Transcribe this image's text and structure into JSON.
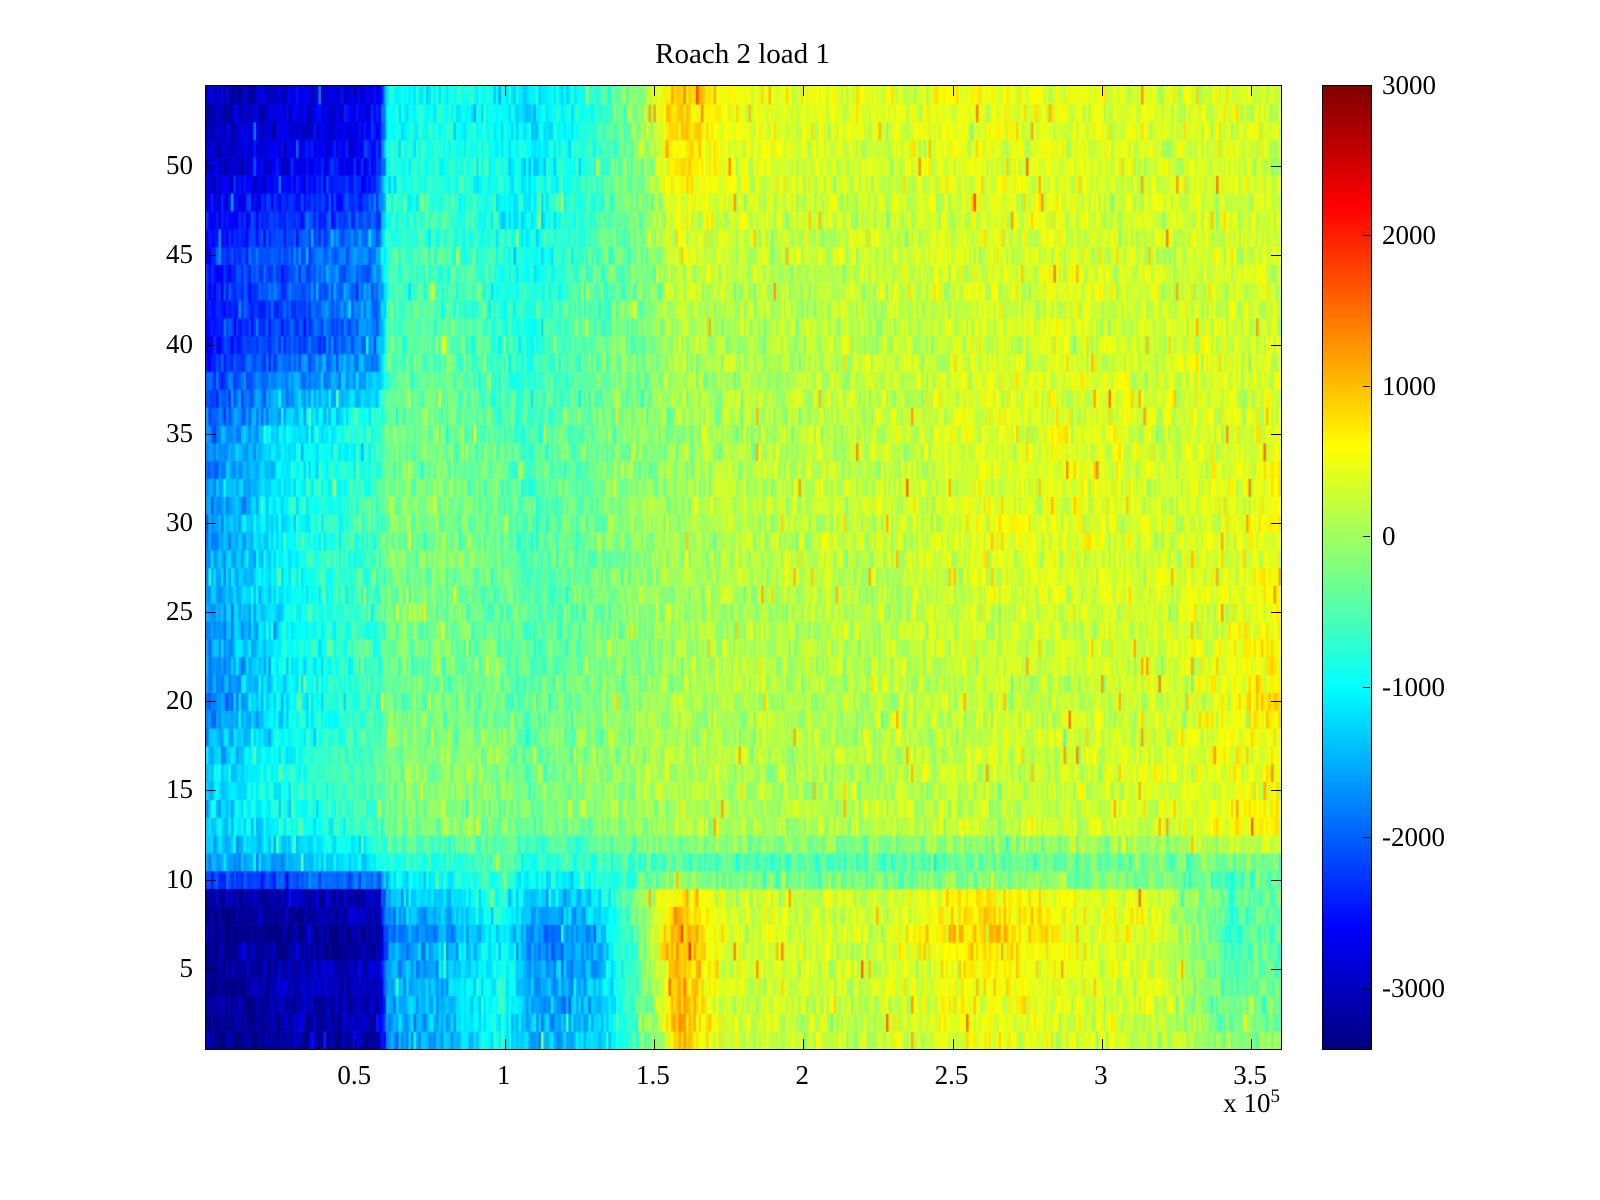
{
  "axes": {
    "x_offset_base": "x 10",
    "x_offset_exp": "5"
  },
  "chart_data": {
    "type": "heatmap",
    "title": "Roach 2 load 1",
    "xlabel": "",
    "ylabel": "",
    "xlim": [
      0,
      360000
    ],
    "ylim": [
      0.5,
      54.5
    ],
    "clim": [
      -3400,
      3000
    ],
    "colormap": "jet",
    "legend": "colorbar-right",
    "grid_lines": "off",
    "x_ticks": [
      {
        "value": 50000,
        "label": "0.5"
      },
      {
        "value": 100000,
        "label": "1"
      },
      {
        "value": 150000,
        "label": "1.5"
      },
      {
        "value": 200000,
        "label": "2"
      },
      {
        "value": 250000,
        "label": "2.5"
      },
      {
        "value": 300000,
        "label": "3"
      },
      {
        "value": 350000,
        "label": "3.5"
      }
    ],
    "y_ticks": [
      {
        "value": 5,
        "label": "5"
      },
      {
        "value": 10,
        "label": "10"
      },
      {
        "value": 15,
        "label": "15"
      },
      {
        "value": 20,
        "label": "20"
      },
      {
        "value": 25,
        "label": "25"
      },
      {
        "value": 30,
        "label": "30"
      },
      {
        "value": 35,
        "label": "35"
      },
      {
        "value": 40,
        "label": "40"
      },
      {
        "value": 45,
        "label": "45"
      },
      {
        "value": 50,
        "label": "50"
      }
    ],
    "colorbar_ticks": [
      {
        "value": 3000,
        "label": "3000"
      },
      {
        "value": 2000,
        "label": "2000"
      },
      {
        "value": 1000,
        "label": "1000"
      },
      {
        "value": 0,
        "label": "0"
      },
      {
        "value": -1000,
        "label": "-1000"
      },
      {
        "value": -2000,
        "label": "-2000"
      },
      {
        "value": -3000,
        "label": "-3000"
      }
    ],
    "grid": {
      "x": [
        0,
        30000,
        58000,
        61000,
        80000,
        100000,
        108000,
        130000,
        148000,
        158000,
        175000,
        200000,
        230000,
        260000,
        290000,
        320000,
        342000,
        360000
      ],
      "y": [
        1,
        4,
        7,
        9,
        10.5,
        13,
        16,
        20,
        25,
        30,
        35,
        40,
        45,
        50,
        54
      ],
      "values": [
        [
          -3200,
          -3200,
          -3100,
          -1600,
          -1500,
          -900,
          -1500,
          -1400,
          -300,
          1000,
          300,
          150,
          250,
          500,
          350,
          250,
          -200,
          -100
        ],
        [
          -3300,
          -3000,
          -3000,
          -1500,
          -1400,
          -800,
          -1600,
          -1500,
          -200,
          1100,
          350,
          200,
          300,
          600,
          400,
          300,
          -400,
          -300
        ],
        [
          -3300,
          -3300,
          -3200,
          -1800,
          -1600,
          -1000,
          -1800,
          -1600,
          0,
          1200,
          400,
          250,
          350,
          900,
          600,
          350,
          -600,
          -400
        ],
        [
          -3200,
          -3100,
          -3000,
          -1400,
          -1300,
          -700,
          -1400,
          -1200,
          100,
          900,
          350,
          250,
          300,
          700,
          450,
          300,
          -500,
          -300
        ],
        [
          -1800,
          -1500,
          -1300,
          -1000,
          -900,
          -700,
          -900,
          -800,
          -600,
          -500,
          -600,
          -650,
          -600,
          -550,
          -500,
          -450,
          -500,
          -400
        ],
        [
          -1300,
          -900,
          -600,
          -250,
          -150,
          -100,
          -350,
          -150,
          0,
          100,
          100,
          100,
          150,
          200,
          250,
          300,
          500,
          600
        ],
        [
          -1400,
          -800,
          -500,
          -200,
          -100,
          -150,
          -300,
          -100,
          50,
          100,
          150,
          100,
          150,
          250,
          300,
          300,
          450,
          550
        ],
        [
          -1800,
          -1000,
          -600,
          -350,
          -250,
          -300,
          -450,
          -200,
          -50,
          50,
          100,
          100,
          150,
          200,
          250,
          300,
          500,
          800
        ],
        [
          -1700,
          -950,
          -550,
          -300,
          -200,
          -350,
          -500,
          -250,
          -100,
          0,
          100,
          150,
          150,
          250,
          300,
          300,
          400,
          500
        ],
        [
          -1700,
          -900,
          -500,
          -250,
          -200,
          -400,
          -550,
          -250,
          -100,
          50,
          150,
          200,
          250,
          450,
          400,
          350,
          400,
          600
        ],
        [
          -1900,
          -1100,
          -700,
          -300,
          -250,
          -450,
          -600,
          -300,
          -150,
          0,
          100,
          150,
          200,
          400,
          450,
          300,
          350,
          400
        ],
        [
          -2500,
          -2100,
          -1800,
          -500,
          -400,
          -700,
          -800,
          -400,
          -200,
          100,
          100,
          150,
          200,
          300,
          350,
          300,
          350,
          300
        ],
        [
          -2400,
          -2000,
          -1700,
          -600,
          -500,
          -800,
          -900,
          -500,
          -200,
          300,
          200,
          200,
          250,
          300,
          350,
          250,
          300,
          350
        ],
        [
          -2900,
          -2700,
          -2500,
          -900,
          -800,
          -1000,
          -1100,
          -700,
          -100,
          800,
          400,
          300,
          300,
          400,
          400,
          300,
          350,
          300
        ],
        [
          -3100,
          -2900,
          -2700,
          -1000,
          -900,
          -1100,
          -1200,
          -800,
          200,
          1000,
          500,
          400,
          350,
          500,
          450,
          350,
          400,
          350
        ]
      ]
    },
    "render": {
      "columns": 430,
      "noise_amp": 450
    }
  }
}
